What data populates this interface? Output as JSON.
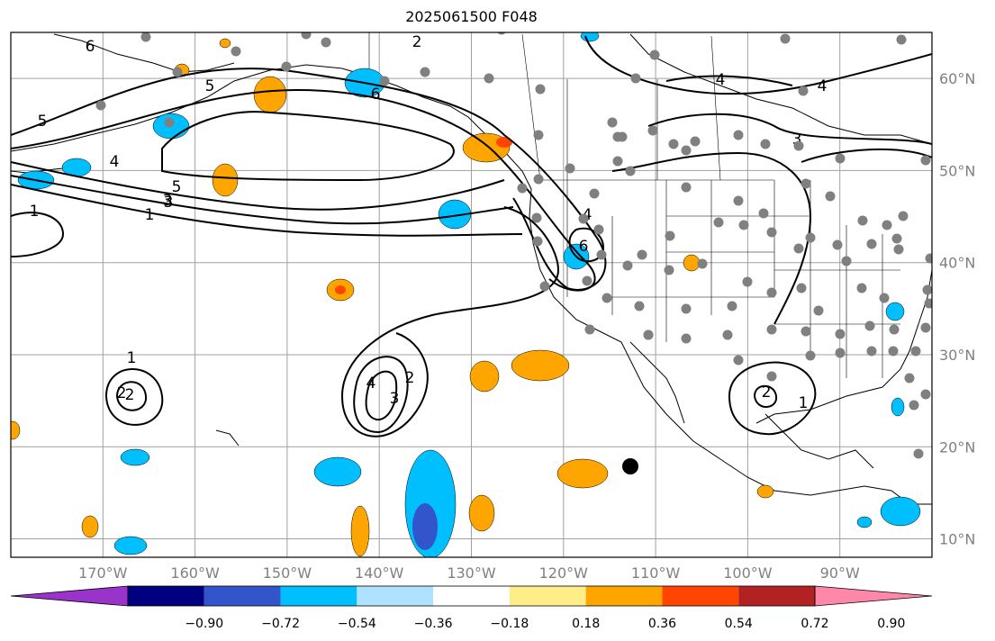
{
  "map": {
    "title": "2025061500 F048",
    "extent": {
      "lon_min": -180,
      "lon_max": -80,
      "lat_min": 8,
      "lat_max": 65
    },
    "longitude_ticks": [
      {
        "lon": -170,
        "label": "170°W"
      },
      {
        "lon": -160,
        "label": "160°W"
      },
      {
        "lon": -150,
        "label": "150°W"
      },
      {
        "lon": -140,
        "label": "140°W"
      },
      {
        "lon": -130,
        "label": "130°W"
      },
      {
        "lon": -120,
        "label": "120°W"
      },
      {
        "lon": -110,
        "label": "110°W"
      },
      {
        "lon": -100,
        "label": "100°W"
      },
      {
        "lon": -90,
        "label": "90°W"
      }
    ],
    "latitude_ticks": [
      {
        "lat": 60,
        "label": "60°N"
      },
      {
        "lat": 50,
        "label": "50°N"
      },
      {
        "lat": 40,
        "label": "40°N"
      },
      {
        "lat": 30,
        "label": "30°N"
      },
      {
        "lat": 20,
        "label": "20°N"
      },
      {
        "lat": 10,
        "label": "10°N"
      }
    ],
    "grid": true
  },
  "colorbar": {
    "colors": [
      "#9933cc",
      "#000080",
      "#3355cc",
      "#00bfff",
      "#aee2ff",
      "#ffffff",
      "#ffee88",
      "#ffa500",
      "#ff4500",
      "#b22222",
      "#ff88aa"
    ],
    "tick_labels": [
      "−0.90",
      "−0.72",
      "−0.54",
      "−0.36",
      "−0.18",
      "0.18",
      "0.36",
      "0.54",
      "0.72",
      "0.90"
    ],
    "extend": "both"
  },
  "contour_labels": [
    "5",
    "4",
    "3",
    "1",
    "6",
    "2",
    "5",
    "3",
    "2",
    "6",
    "4",
    "4",
    "3",
    "1",
    "1",
    "2",
    "3",
    "2",
    "4",
    "1",
    "2",
    "6",
    "4",
    "5"
  ],
  "colors": {
    "station_marker": "#808080",
    "contour": "#000000",
    "grid": "#a0a0a0",
    "tick_label": "#808080"
  }
}
